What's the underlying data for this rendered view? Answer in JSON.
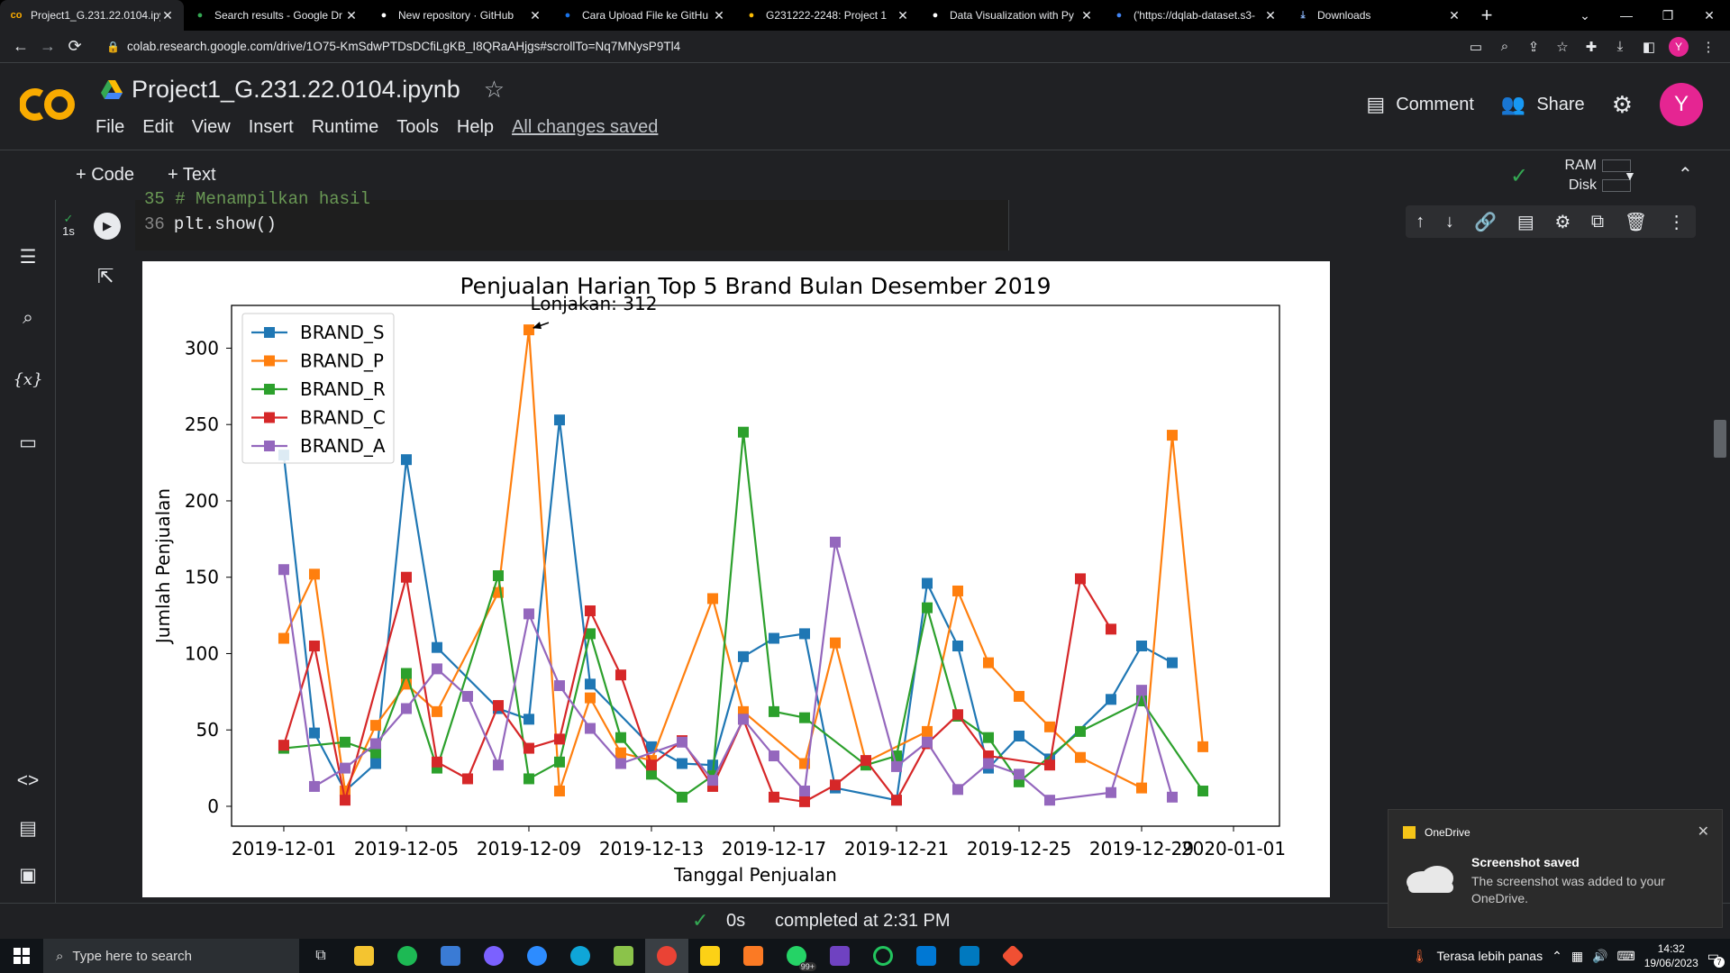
{
  "browser": {
    "tabs": [
      {
        "title": "Project1_G.231.22.0104.ipy",
        "icon": "colab-icon",
        "color": "#f9ab00",
        "active": true
      },
      {
        "title": "Search results - Google Dr",
        "icon": "drive-icon",
        "color": "#34a853"
      },
      {
        "title": "New repository · GitHub",
        "icon": "github-icon",
        "color": "#ffffff"
      },
      {
        "title": "Cara Upload File ke GitHu",
        "icon": "site-icon",
        "color": "#1a73e8"
      },
      {
        "title": "G231222-2248: Project 1",
        "icon": "site-icon",
        "color": "#fbbc04"
      },
      {
        "title": "Data Visualization with Py",
        "icon": "site-icon",
        "color": "#ffffff"
      },
      {
        "title": "('https://dqlab-dataset.s3-",
        "icon": "google-icon",
        "color": "#4285f4"
      },
      {
        "title": "Downloads",
        "icon": "download-icon",
        "color": "#8ab4f8"
      }
    ],
    "new_tab": "+",
    "url": "colab.research.google.com/drive/1O75-KmSdwPTDsDCfiLgKB_I8QRaAHjgs#scrollTo=Nq7MNysP9Tl4",
    "profile_initial": "Y"
  },
  "colab": {
    "notebook_title": "Project1_G.231.22.0104.ipynb",
    "menu": [
      "File",
      "Edit",
      "View",
      "Insert",
      "Runtime",
      "Tools",
      "Help"
    ],
    "saved_status": "All changes saved",
    "comment_label": "Comment",
    "share_label": "Share",
    "avatar_initial": "Y",
    "add_code": "+ Code",
    "add_text": "+ Text",
    "ram_label": "RAM",
    "disk_label": "Disk",
    "cell_status": "1s",
    "code_line_prev": "35 # Menampilkan hasil",
    "code_line_num": "36",
    "code_line_text": "plt.show()",
    "exec_time": "0s",
    "completed": "completed at 2:31 PM"
  },
  "chart_data": {
    "type": "line",
    "title": "Penjualan Harian Top 5 Brand Bulan Desember 2019",
    "xlabel": "Tanggal Penjualan",
    "ylabel": "Jumlah Penjualan",
    "x": [
      "2019-12-01",
      "2019-12-02",
      "2019-12-03",
      "2019-12-04",
      "2019-12-05",
      "2019-12-06",
      "2019-12-07",
      "2019-12-08",
      "2019-12-09",
      "2019-12-10",
      "2019-12-11",
      "2019-12-12",
      "2019-12-13",
      "2019-12-14",
      "2019-12-15",
      "2019-12-16",
      "2019-12-17",
      "2019-12-18",
      "2019-12-19",
      "2019-12-20",
      "2019-12-21",
      "2019-12-22",
      "2019-12-23",
      "2019-12-24",
      "2019-12-25",
      "2019-12-26",
      "2019-12-27",
      "2019-12-28",
      "2019-12-29",
      "2019-12-30",
      "2019-12-31"
    ],
    "x_ticks": [
      "2019-12-01",
      "2019-12-05",
      "2019-12-09",
      "2019-12-13",
      "2019-12-17",
      "2019-12-21",
      "2019-12-25",
      "2019-12-29",
      "2020-01-01"
    ],
    "ylim": [
      -13,
      328
    ],
    "y_ticks": [
      0,
      50,
      100,
      150,
      200,
      250,
      300
    ],
    "legend_position": "upper-left",
    "marker": "square",
    "annotation": {
      "text": "Lonjakan: 312",
      "x": "2019-12-09",
      "y": 312
    },
    "series": [
      {
        "name": "BRAND_S",
        "color": "#1f77b4",
        "values": [
          230,
          48,
          10,
          28,
          227,
          104,
          null,
          64,
          57,
          253,
          80,
          null,
          39,
          28,
          27,
          98,
          110,
          113,
          12,
          null,
          4,
          146,
          105,
          25,
          46,
          31,
          null,
          70,
          105,
          94,
          null
        ]
      },
      {
        "name": "BRAND_P",
        "color": "#ff7f0e",
        "values": [
          110,
          152,
          10,
          53,
          80,
          62,
          null,
          140,
          312,
          10,
          71,
          35,
          30,
          null,
          136,
          62,
          null,
          28,
          107,
          29,
          null,
          49,
          141,
          94,
          72,
          52,
          32,
          null,
          12,
          243,
          39
        ]
      },
      {
        "name": "BRAND_R",
        "color": "#2ca02c",
        "values": [
          38,
          null,
          42,
          35,
          87,
          25,
          null,
          151,
          18,
          29,
          113,
          45,
          21,
          6,
          20,
          245,
          62,
          58,
          null,
          27,
          33,
          130,
          59,
          45,
          16,
          null,
          49,
          null,
          69,
          null,
          10
        ]
      },
      {
        "name": "BRAND_C",
        "color": "#d62728",
        "values": [
          40,
          105,
          4,
          null,
          150,
          29,
          18,
          66,
          38,
          44,
          128,
          86,
          27,
          43,
          13,
          57,
          6,
          3,
          14,
          30,
          4,
          41,
          60,
          33,
          null,
          27,
          149,
          116,
          null,
          null,
          null
        ]
      },
      {
        "name": "BRAND_A",
        "color": "#9467bd",
        "values": [
          155,
          13,
          25,
          41,
          64,
          90,
          72,
          27,
          126,
          79,
          51,
          28,
          null,
          42,
          17,
          57,
          33,
          10,
          173,
          null,
          26,
          42,
          11,
          28,
          21,
          4,
          null,
          9,
          76,
          6,
          null
        ]
      }
    ]
  },
  "onedrive_toast": {
    "app": "OneDrive",
    "heading": "Screenshot saved",
    "body": "The screenshot was added to your OneDrive."
  },
  "taskbar": {
    "search_placeholder": "Type here to search",
    "weather": "Terasa lebih panas",
    "time": "14:32",
    "date": "19/06/2023",
    "notification_count": "7",
    "badge": "99+"
  }
}
